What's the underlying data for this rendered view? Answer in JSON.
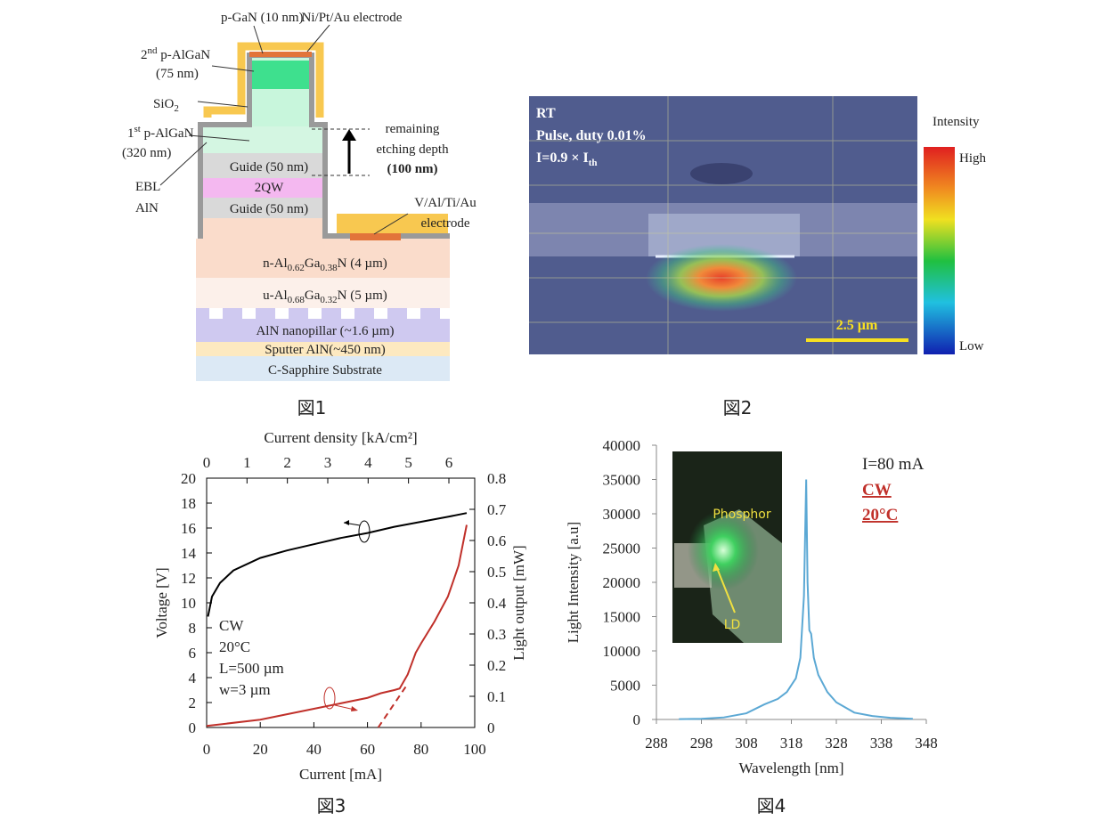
{
  "figure1": {
    "p_gan": "p-GaN (10 nm)",
    "electrode_top": "Ni/Pt/Au electrode",
    "p_algan2": [
      "2",
      "nd",
      " p-AlGaN"
    ],
    "p_algan2_thickness": "(75 nm)",
    "sio2": [
      "SiO",
      "2"
    ],
    "p_algan1": [
      "1",
      "st",
      " p-AlGaN"
    ],
    "p_algan1_thickness": "(320 nm)",
    "ebl": "EBL",
    "aln": "AlN",
    "guide_upper": "Guide (50 nm)",
    "qw": "2QW",
    "guide_lower": "Guide (50 nm)",
    "etch": [
      "remaining",
      "etching depth",
      "(100 nm)"
    ],
    "electrode_bottom": [
      "V/Al/Ti/Au",
      "electrode"
    ],
    "n_layer": [
      "n-Al",
      "0.62",
      "Ga",
      "0.38",
      "N  (4 µm)"
    ],
    "u_layer": [
      "u-Al",
      "0.68",
      "Ga",
      "0.32",
      "N (5 µm)"
    ],
    "nanopillar": "AlN nanopillar (~1.6 µm)",
    "sputter": "Sputter AlN(~450 nm)",
    "substrate": "C-Sapphire Substrate",
    "caption": "図1"
  },
  "figure2": {
    "conditions": [
      "RT",
      "Pulse, duty 0.01%"
    ],
    "current": [
      "I=0.9 × I",
      "th"
    ],
    "scale_bar": "2.5 µm",
    "colorbar_title": "Intensity",
    "colorbar_high": "High",
    "colorbar_low": "Low",
    "caption": "図2"
  },
  "chart_data": [
    {
      "type": "line",
      "xlabel": "Current [mA]",
      "ylabel": "Voltage [V]",
      "y2label": "Light output [mW]",
      "x2label": "Current density [kA/cm²]",
      "xlim": [
        0,
        100
      ],
      "xticks": [
        0,
        20,
        40,
        60,
        80,
        100
      ],
      "ylim": [
        0,
        20
      ],
      "yticks": [
        0,
        2,
        4,
        6,
        8,
        10,
        12,
        14,
        16,
        18,
        20
      ],
      "y2lim": [
        0,
        0.8
      ],
      "y2ticks": [
        0,
        0.1,
        0.2,
        0.3,
        0.4,
        0.5,
        0.6,
        0.7,
        0.8
      ],
      "x2lim": [
        0,
        6.64
      ],
      "x2ticks": [
        0,
        1,
        2,
        3,
        4,
        5,
        6
      ],
      "series": [
        {
          "color": "#000000",
          "x": [
            0.5,
            2,
            5,
            10,
            20,
            30,
            40,
            50,
            60,
            70,
            80,
            90,
            97
          ],
          "values": [
            8.9,
            10.5,
            11.6,
            12.6,
            13.6,
            14.2,
            14.7,
            15.2,
            15.6,
            16.1,
            16.5,
            16.9,
            17.2
          ]
        },
        {
          "color": "#c0302a",
          "axis": "y2",
          "x": [
            0,
            20,
            40,
            60,
            65,
            70,
            72,
            75,
            78,
            80,
            85,
            90,
            94,
            97
          ],
          "values": [
            0.005,
            0.025,
            0.06,
            0.095,
            0.11,
            0.12,
            0.125,
            0.17,
            0.24,
            0.27,
            0.34,
            0.42,
            0.52,
            0.65
          ]
        },
        {
          "color": "#c0302a",
          "axis": "y2",
          "dash": true,
          "x": [
            64,
            75
          ],
          "values": [
            0,
            0.14
          ]
        }
      ],
      "annotations": [
        "CW",
        "20°C",
        "L=500 µm",
        "w=3 µm"
      ],
      "caption": "図3"
    },
    {
      "type": "line",
      "xlabel": "Wavelength  [nm]",
      "ylabel": "Light Intensity [a.u]",
      "xlim": [
        288,
        348
      ],
      "xticks": [
        288,
        298,
        308,
        318,
        328,
        338,
        348
      ],
      "ylim": [
        0,
        40000
      ],
      "yticks": [
        0,
        5000,
        10000,
        15000,
        20000,
        25000,
        30000,
        35000,
        40000
      ],
      "series": [
        {
          "color": "#5ba8d4",
          "x": [
            293,
            298,
            303,
            308,
            312,
            315,
            317,
            319,
            320,
            320.8,
            321.3,
            321.6,
            322,
            322.4,
            323,
            324,
            326,
            328,
            332,
            336,
            340,
            345
          ],
          "values": [
            50,
            100,
            300,
            900,
            2200,
            3000,
            4000,
            6000,
            9000,
            18000,
            35000,
            20000,
            13000,
            12500,
            9000,
            6500,
            4000,
            2500,
            1000,
            500,
            250,
            100
          ]
        }
      ],
      "annotations": [
        "I=80 mA",
        "CW",
        "20°C"
      ],
      "inset_labels": [
        "Phosphor",
        "LD"
      ],
      "caption": "図4"
    }
  ]
}
